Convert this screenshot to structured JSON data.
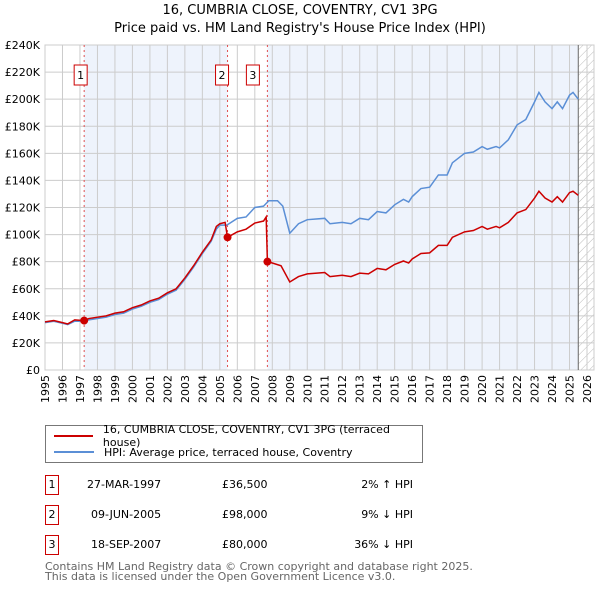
{
  "chart_data": {
    "type": "line",
    "title": "16, CUMBRIA CLOSE, COVENTRY, CV1 3PG",
    "subtitle": "Price paid vs. HM Land Registry's House Price Index (HPI)",
    "xlim": [
      1995,
      2026.4
    ],
    "ylim": [
      0,
      240000
    ],
    "x_ticks": [
      "1995",
      "1996",
      "1997",
      "1998",
      "1999",
      "2000",
      "2001",
      "2002",
      "2003",
      "2004",
      "2005",
      "2006",
      "2007",
      "2008",
      "2009",
      "2010",
      "2011",
      "2012",
      "2013",
      "2014",
      "2015",
      "2016",
      "2017",
      "2018",
      "2019",
      "2020",
      "2021",
      "2022",
      "2023",
      "2024",
      "2025",
      "2026"
    ],
    "y_ticks": [
      {
        "v": 0,
        "label": "£0"
      },
      {
        "v": 20000,
        "label": "£20K"
      },
      {
        "v": 40000,
        "label": "£40K"
      },
      {
        "v": 60000,
        "label": "£60K"
      },
      {
        "v": 80000,
        "label": "£80K"
      },
      {
        "v": 100000,
        "label": "£100K"
      },
      {
        "v": 120000,
        "label": "£120K"
      },
      {
        "v": 140000,
        "label": "£140K"
      },
      {
        "v": 160000,
        "label": "£160K"
      },
      {
        "v": 180000,
        "label": "£180K"
      },
      {
        "v": 200000,
        "label": "£200K"
      },
      {
        "v": 220000,
        "label": "£220K"
      },
      {
        "v": 240000,
        "label": "£240K"
      }
    ],
    "grid": true,
    "series": [
      {
        "name": "16, CUMBRIA CLOSE, COVENTRY, CV1 3PG (terraced house)",
        "color": "#cc0000",
        "x": [
          1995,
          1995.5,
          1996,
          1996.3,
          1996.7,
          1997.24,
          1997.5,
          1998,
          1998.5,
          1999,
          1999.5,
          2000,
          2000.5,
          2001,
          2001.5,
          2002,
          2002.5,
          2003,
          2003.5,
          2004,
          2004.5,
          2004.8,
          2005,
          2005.3,
          2005.44,
          2006,
          2006.5,
          2007,
          2007.5,
          2007.65,
          2007.72,
          2008,
          2008.5,
          2009,
          2009.5,
          2010,
          2011,
          2011.3,
          2012,
          2012.5,
          2013,
          2013.5,
          2014,
          2014.5,
          2015,
          2015.5,
          2015.8,
          2016,
          2016.5,
          2017,
          2017.5,
          2018,
          2018.3,
          2019,
          2019.5,
          2020,
          2020.3,
          2020.8,
          2021,
          2021.5,
          2022,
          2022.5,
          2023,
          2023.25,
          2023.6,
          2024,
          2024.3,
          2024.6,
          2025,
          2025.2,
          2025.5
        ],
        "y": [
          35500,
          36500,
          35000,
          34000,
          37000,
          36500,
          38000,
          39000,
          40000,
          42000,
          43000,
          46000,
          48000,
          51000,
          53000,
          57000,
          60000,
          68000,
          77000,
          87000,
          96000,
          106000,
          108000,
          109000,
          98000,
          102000,
          104000,
          108500,
          110000,
          113000,
          80000,
          79000,
          77000,
          65000,
          69000,
          71000,
          72000,
          69000,
          70000,
          69000,
          71500,
          71000,
          75000,
          74000,
          78000,
          80500,
          79000,
          82000,
          86000,
          86500,
          92000,
          92000,
          98000,
          102000,
          103000,
          106000,
          104000,
          106000,
          105000,
          109000,
          116000,
          118500,
          127000,
          132000,
          127000,
          124000,
          128000,
          124000,
          131000,
          132000,
          129000
        ]
      },
      {
        "name": "HPI: Average price, terraced house, Coventry",
        "color": "#5b8fd6",
        "x": [
          1995,
          1995.5,
          1996,
          1996.3,
          1996.7,
          1997.2,
          1997.5,
          1998,
          1998.5,
          1999,
          1999.5,
          2000,
          2000.5,
          2001,
          2001.5,
          2002,
          2002.5,
          2003,
          2003.5,
          2004,
          2004.5,
          2004.8,
          2005,
          2005.4,
          2006,
          2006.5,
          2007,
          2007.5,
          2007.8,
          2008.3,
          2008.6,
          2009,
          2009.5,
          2010,
          2011,
          2011.3,
          2012,
          2012.5,
          2013,
          2013.5,
          2014,
          2014.5,
          2015,
          2015.5,
          2015.8,
          2016,
          2016.5,
          2017,
          2017.5,
          2018,
          2018.3,
          2019,
          2019.5,
          2020,
          2020.3,
          2020.8,
          2021,
          2021.5,
          2022,
          2022.5,
          2023,
          2023.25,
          2023.6,
          2024,
          2024.3,
          2024.6,
          2025,
          2025.2,
          2025.5
        ],
        "y": [
          35000,
          36000,
          34500,
          33500,
          36000,
          36000,
          37000,
          38000,
          39000,
          41000,
          42000,
          45000,
          47000,
          50000,
          52000,
          56000,
          59000,
          67000,
          76000,
          86000,
          95000,
          104000,
          107000,
          107000,
          112000,
          113000,
          120000,
          121000,
          125000,
          125000,
          121000,
          101000,
          108000,
          111000,
          112000,
          108000,
          109000,
          108000,
          112000,
          111000,
          117000,
          116000,
          122000,
          126000,
          124000,
          128000,
          134000,
          135000,
          144000,
          144000,
          153000,
          160000,
          161000,
          165000,
          163000,
          165000,
          164000,
          170000,
          181000,
          185000,
          198000,
          205000,
          198000,
          193000,
          198000,
          193000,
          203000,
          205000,
          200000
        ]
      }
    ],
    "sales": [
      {
        "n": "1",
        "x": 1997.24,
        "y": 36500,
        "date": "27-MAR-1997",
        "price": "£36,500",
        "hpi": "2% ↑ HPI"
      },
      {
        "n": "2",
        "x": 2005.44,
        "y": 98000,
        "date": "09-JUN-2005",
        "price": "£98,000",
        "hpi": "9% ↓ HPI"
      },
      {
        "n": "3",
        "x": 2007.72,
        "y": 80000,
        "date": "18-SEP-2007",
        "price": "£80,000",
        "hpi": "36% ↓ HPI"
      }
    ],
    "forecast_start": 2025.5,
    "legend_placement": "bottom"
  },
  "footer": {
    "line1": "Contains HM Land Registry data © Crown copyright and database right 2025.",
    "line2": "This data is licensed under the Open Government Licence v3.0."
  }
}
